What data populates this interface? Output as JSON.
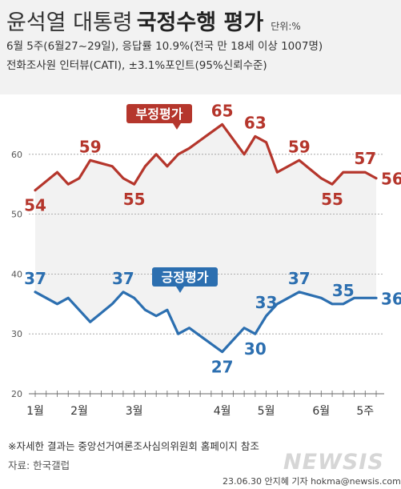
{
  "header": {
    "title_light": "윤석열 대통령",
    "title_bold": "국정수행 평가",
    "unit": "단위:%",
    "subtitle_1": "6월 5주(6월27~29일), 응답률 10.9%(전국 만 18세 이상 1007명)",
    "subtitle_2": "전화조사원 인터뷰(CATI), ±3.1%포인트(95%신뢰수준)"
  },
  "footer": {
    "footnote": "※자세한 결과는 중앙선거여론조사심의위원회 홈페이지 참조",
    "source": "자료: 한국갤럽",
    "credit": "23.06.30 안지혜 기자 hokma@newsis.com",
    "logo": "NEWSIS"
  },
  "colors": {
    "negative": "#b5362c",
    "positive": "#2c6fb0",
    "band": "#f2f2f2",
    "grid": "#999999"
  },
  "chart_data": {
    "type": "line",
    "ylim": [
      20,
      70
    ],
    "yticks": [
      20,
      30,
      40,
      50,
      60
    ],
    "x_tick_labels": [
      {
        "index": 0,
        "label": "1월"
      },
      {
        "index": 4,
        "label": "2월"
      },
      {
        "index": 9,
        "label": "3월"
      },
      {
        "index": 17,
        "label": "4월"
      },
      {
        "index": 21,
        "label": "5월"
      },
      {
        "index": 26,
        "label": "6월"
      },
      {
        "index": 30,
        "label": "5주"
      }
    ],
    "series": [
      {
        "name": "부정평가",
        "color_key": "negative",
        "values": [
          54,
          57,
          55,
          56,
          59,
          58,
          56,
          55,
          58,
          60,
          58,
          60,
          61,
          65,
          60,
          63,
          62,
          57,
          59,
          56,
          55,
          57,
          57,
          57,
          56
        ],
        "x_index": [
          0,
          2,
          3,
          4,
          5,
          7,
          8,
          9,
          10,
          11,
          12,
          13,
          14,
          17,
          19,
          20,
          21,
          22,
          24,
          26,
          27,
          28,
          29,
          30,
          31
        ],
        "labels": [
          {
            "i": 0,
            "text": "54",
            "pos": "below"
          },
          {
            "i": 4,
            "text": "59",
            "pos": "above"
          },
          {
            "i": 7,
            "text": "55",
            "pos": "below"
          },
          {
            "i": 13,
            "text": "65",
            "pos": "above"
          },
          {
            "i": 15,
            "text": "63",
            "pos": "above"
          },
          {
            "i": 18,
            "text": "59",
            "pos": "above"
          },
          {
            "i": 20,
            "text": "55",
            "pos": "below"
          },
          {
            "i": 23,
            "text": "57",
            "pos": "above"
          },
          {
            "i": 24,
            "text": "56",
            "pos": "right"
          }
        ]
      },
      {
        "name": "긍정평가",
        "color_key": "positive",
        "values": [
          37,
          35,
          36,
          34,
          32,
          35,
          37,
          36,
          34,
          33,
          34,
          30,
          31,
          27,
          31,
          30,
          33,
          35,
          37,
          36,
          35,
          35,
          36,
          36,
          36
        ],
        "x_index": [
          0,
          2,
          3,
          4,
          5,
          7,
          8,
          9,
          10,
          11,
          12,
          13,
          14,
          17,
          19,
          20,
          21,
          22,
          24,
          26,
          27,
          28,
          29,
          30,
          31
        ],
        "labels": [
          {
            "i": 0,
            "text": "37",
            "pos": "above"
          },
          {
            "i": 6,
            "text": "37",
            "pos": "above"
          },
          {
            "i": 13,
            "text": "27",
            "pos": "below"
          },
          {
            "i": 15,
            "text": "30",
            "pos": "below"
          },
          {
            "i": 16,
            "text": "33",
            "pos": "above"
          },
          {
            "i": 18,
            "text": "37",
            "pos": "above"
          },
          {
            "i": 21,
            "text": "35",
            "pos": "above"
          },
          {
            "i": 24,
            "text": "36",
            "pos": "right"
          }
        ]
      }
    ],
    "legend": [
      {
        "text": "부정평가",
        "color_key": "negative",
        "anchor_index": 7
      },
      {
        "text": "긍정평가",
        "color_key": "positive",
        "anchor_index": 9
      }
    ]
  }
}
